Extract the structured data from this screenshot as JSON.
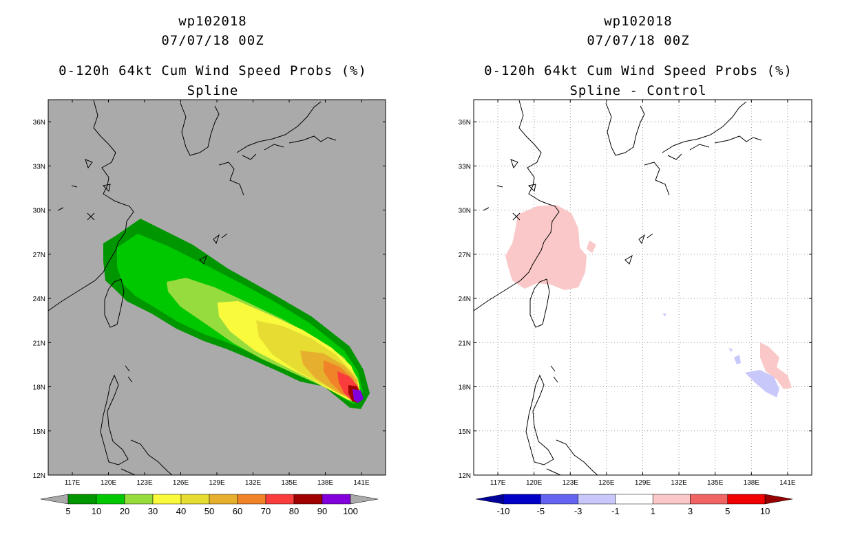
{
  "chart_data": [
    {
      "type": "heatmap",
      "title": "wp102018",
      "subtitle": "07/07/18 00Z",
      "title2": "0-120h 64kt Cum Wind Speed Probs (%)",
      "title3": "Spline",
      "xlabel": "",
      "ylabel": "",
      "xlim": [
        115,
        143
      ],
      "ylim": [
        12,
        37.5
      ],
      "lon_ticks": [
        "117E",
        "120E",
        "123E",
        "126E",
        "129E",
        "132E",
        "135E",
        "138E",
        "141E"
      ],
      "lat_ticks": [
        "12N",
        "15N",
        "18N",
        "21N",
        "24N",
        "27N",
        "30N",
        "33N",
        "36N"
      ],
      "background_color": "#aaaaaa",
      "contour_levels": [
        "5",
        "10",
        "20",
        "30",
        "40",
        "50",
        "60",
        "70",
        "80",
        "90",
        "100"
      ],
      "colorbar_colors": [
        "#009600",
        "#00c800",
        "#96dc3c",
        "#fafa3c",
        "#e6dc32",
        "#e6af2d",
        "#f08228",
        "#fa3c3c",
        "#a00000",
        "#8200dc"
      ],
      "grid": false,
      "colorbar": "bottom, extended both ends"
    },
    {
      "type": "heatmap",
      "title": "wp102018",
      "subtitle": "07/07/18 00Z",
      "title2": "0-120h 64kt Cum Wind Speed Probs (%)",
      "title3": "Spline - Control",
      "xlabel": "",
      "ylabel": "",
      "xlim": [
        115,
        143
      ],
      "ylim": [
        12,
        37.5
      ],
      "lon_ticks": [
        "117E",
        "120E",
        "123E",
        "126E",
        "129E",
        "132E",
        "135E",
        "138E",
        "141E"
      ],
      "lat_ticks": [
        "12N",
        "15N",
        "18N",
        "21N",
        "24N",
        "27N",
        "30N",
        "33N",
        "36N"
      ],
      "background_color": "#ffffff",
      "contour_levels": [
        "-10",
        "-5",
        "-3",
        "-1",
        "1",
        "3",
        "5",
        "10"
      ],
      "colorbar_colors": [
        "#0000c8",
        "#6464f0",
        "#c8c8fa",
        "#ffffff",
        "#fac8c8",
        "#f06464",
        "#f00000"
      ],
      "end_colors": [
        "#00009b",
        "#960000"
      ],
      "grid": true,
      "colorbar": "bottom, extended both ends"
    }
  ]
}
